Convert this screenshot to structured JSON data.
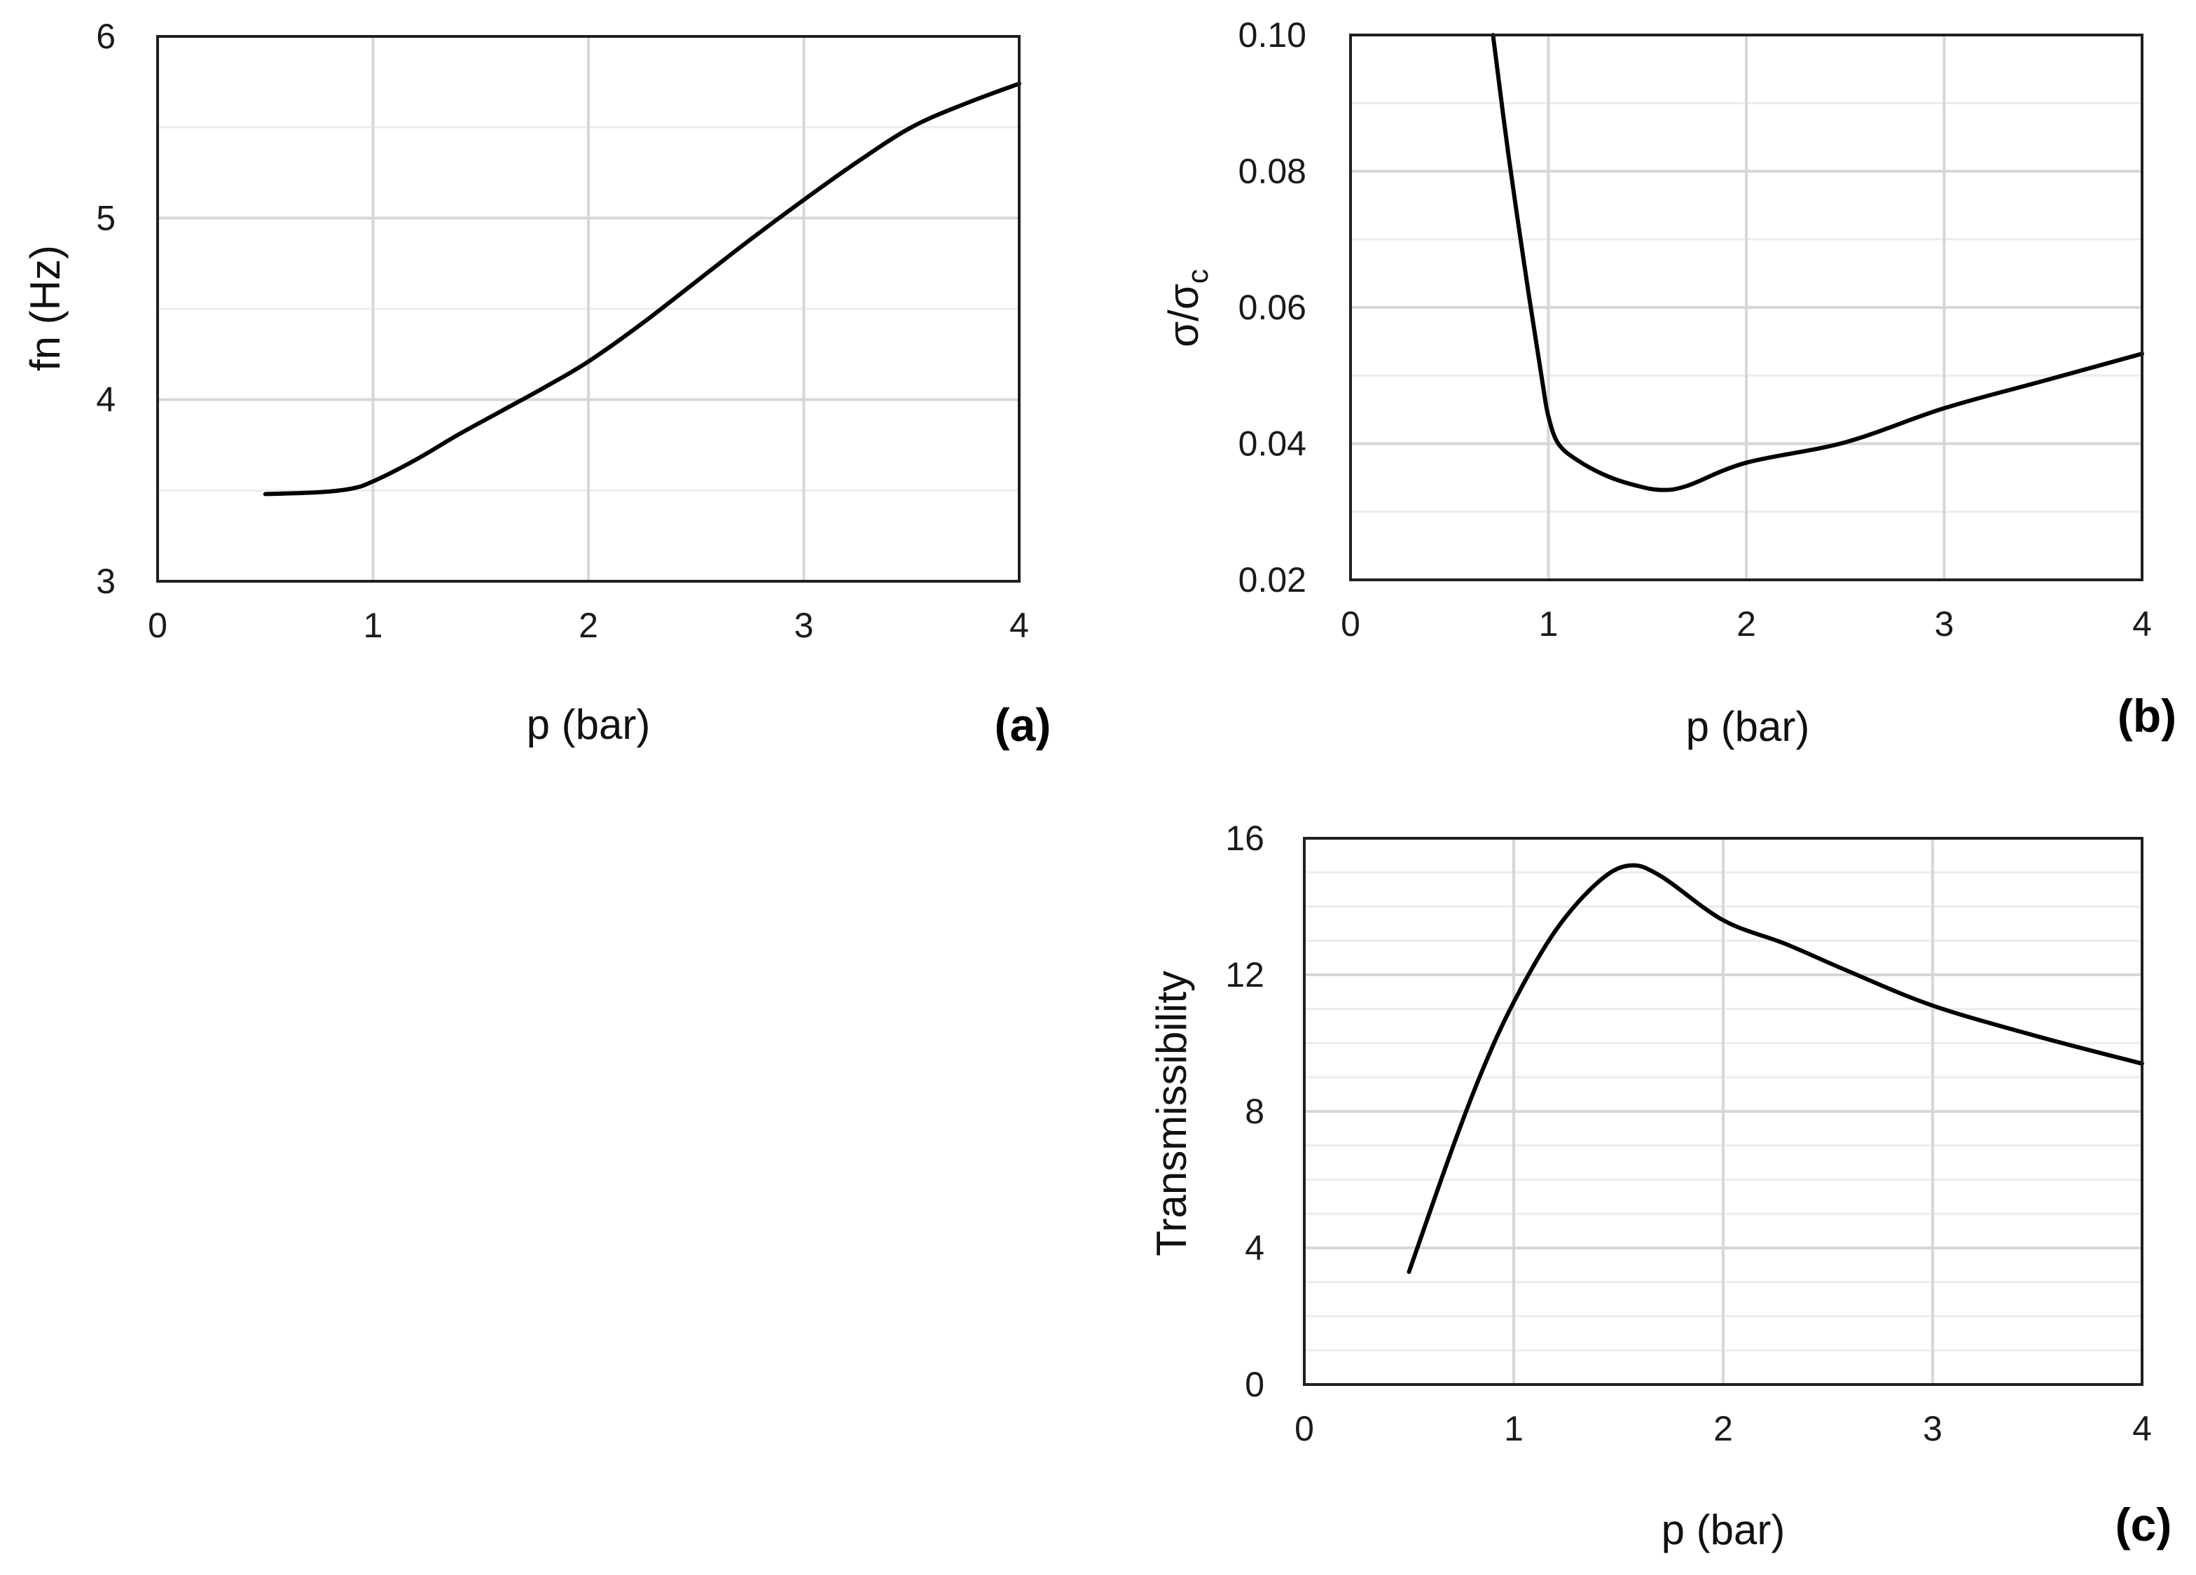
{
  "colors": {
    "line": "#000000",
    "grid_major": "#d6d6d6",
    "grid_minor": "#ececec",
    "frame": "#1f1f1f"
  },
  "chart_data": [
    {
      "id": "a",
      "type": "line",
      "panel_label": "(a)",
      "title": "",
      "xlabel": "p (bar)",
      "ylabel": "fn (Hz)",
      "xlim": [
        0,
        4
      ],
      "ylim": [
        3,
        6
      ],
      "xticks": [
        0,
        1,
        2,
        3,
        4
      ],
      "xtick_labels": [
        "0",
        "1",
        "2",
        "3",
        "4"
      ],
      "yticks": [
        3,
        4,
        5,
        6
      ],
      "ytick_labels": [
        "3",
        "4",
        "5",
        "6"
      ],
      "minor_y": [
        3.5,
        4.5,
        5.5
      ],
      "grid": true,
      "series": [
        {
          "name": "fn",
          "x": [
            0.5,
            0.75,
            0.9,
            1.0,
            1.2,
            1.4,
            1.6,
            1.8,
            2.0,
            2.25,
            2.5,
            2.75,
            3.0,
            3.25,
            3.5,
            3.75,
            4.0
          ],
          "y": [
            3.48,
            3.49,
            3.51,
            3.55,
            3.67,
            3.81,
            3.94,
            4.07,
            4.21,
            4.42,
            4.65,
            4.88,
            5.1,
            5.31,
            5.5,
            5.63,
            5.74
          ]
        }
      ]
    },
    {
      "id": "b",
      "type": "line",
      "panel_label": "(b)",
      "title": "",
      "xlabel": "p (bar)",
      "ylabel_main": "σ/σ",
      "ylabel_sub": "c",
      "xlim": [
        0,
        4
      ],
      "ylim": [
        0.02,
        0.1
      ],
      "xticks": [
        0,
        1,
        2,
        3,
        4
      ],
      "xtick_labels": [
        "0",
        "1",
        "2",
        "3",
        "4"
      ],
      "yticks": [
        0.02,
        0.04,
        0.06,
        0.08,
        0.1
      ],
      "ytick_labels": [
        "0.02",
        "0.04",
        "0.06",
        "0.08",
        "0.10"
      ],
      "minor_y": [
        0.03,
        0.05,
        0.07,
        0.09
      ],
      "grid": true,
      "series": [
        {
          "name": "σ/σc",
          "x": [
            0.72,
            0.8,
            0.9,
            0.97,
            1.0,
            1.05,
            1.15,
            1.3,
            1.45,
            1.57,
            1.7,
            2.0,
            2.5,
            3.0,
            3.5,
            4.0
          ],
          "y": [
            0.1,
            0.082,
            0.062,
            0.049,
            0.044,
            0.04,
            0.0375,
            0.0352,
            0.0338,
            0.0332,
            0.0338,
            0.0372,
            0.0402,
            0.0452,
            0.0492,
            0.0532
          ]
        }
      ]
    },
    {
      "id": "c",
      "type": "line",
      "panel_label": "(c)",
      "title": "",
      "xlabel": "p (bar)",
      "ylabel": "Transmissibility",
      "xlim": [
        0,
        4
      ],
      "ylim": [
        0,
        16
      ],
      "xticks": [
        0,
        1,
        2,
        3,
        4
      ],
      "xtick_labels": [
        "0",
        "1",
        "2",
        "3",
        "4"
      ],
      "yticks": [
        0,
        4,
        8,
        12,
        16
      ],
      "ytick_labels": [
        "0",
        "4",
        "8",
        "12",
        "16"
      ],
      "minor_y": [
        1,
        2,
        3,
        5,
        6,
        7,
        9,
        10,
        11,
        13,
        14,
        15
      ],
      "grid": true,
      "series": [
        {
          "name": "Transmissibility",
          "x": [
            0.5,
            0.7,
            0.85,
            1.0,
            1.2,
            1.4,
            1.55,
            1.7,
            2.0,
            2.3,
            2.6,
            3.0,
            3.5,
            4.0
          ],
          "y": [
            3.3,
            6.8,
            9.2,
            11.2,
            13.3,
            14.7,
            15.2,
            14.9,
            13.6,
            12.9,
            12.1,
            11.1,
            10.2,
            9.4
          ]
        }
      ]
    }
  ]
}
